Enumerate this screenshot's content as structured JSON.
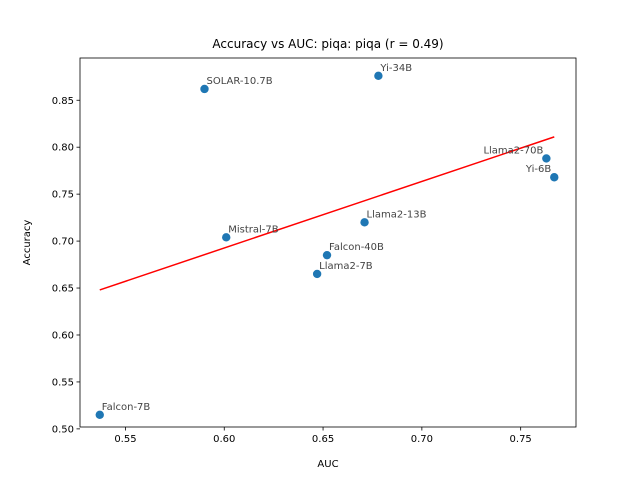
{
  "chart_data": {
    "type": "scatter",
    "title": "Accuracy vs AUC: piqa: piqa (r = 0.49)",
    "xlabel": "AUC",
    "ylabel": "Accuracy",
    "xlim": [
      0.527,
      0.778
    ],
    "ylim": [
      0.502,
      0.895
    ],
    "xticks": [
      "0.55",
      "0.60",
      "0.65",
      "0.70",
      "0.75"
    ],
    "yticks": [
      "0.50",
      "0.55",
      "0.60",
      "0.65",
      "0.70",
      "0.75",
      "0.80",
      "0.85"
    ],
    "points": [
      {
        "label": "Falcon-7B",
        "x": 0.537,
        "y": 0.515
      },
      {
        "label": "SOLAR-10.7B",
        "x": 0.59,
        "y": 0.862
      },
      {
        "label": "Mistral-7B",
        "x": 0.601,
        "y": 0.704
      },
      {
        "label": "Llama2-7B",
        "x": 0.647,
        "y": 0.665
      },
      {
        "label": "Falcon-40B",
        "x": 0.652,
        "y": 0.685
      },
      {
        "label": "Llama2-13B",
        "x": 0.671,
        "y": 0.72
      },
      {
        "label": "Yi-34B",
        "x": 0.678,
        "y": 0.876
      },
      {
        "label": "Llama2-70B",
        "x": 0.763,
        "y": 0.788
      },
      {
        "label": "Yi-6B",
        "x": 0.767,
        "y": 0.768
      }
    ],
    "fit_line": {
      "x": [
        0.537,
        0.767
      ],
      "y": [
        0.648,
        0.811
      ]
    },
    "colors": {
      "points": "#1f77b4",
      "fit": "#ff0000",
      "labels": "#444444"
    },
    "grid": false
  }
}
